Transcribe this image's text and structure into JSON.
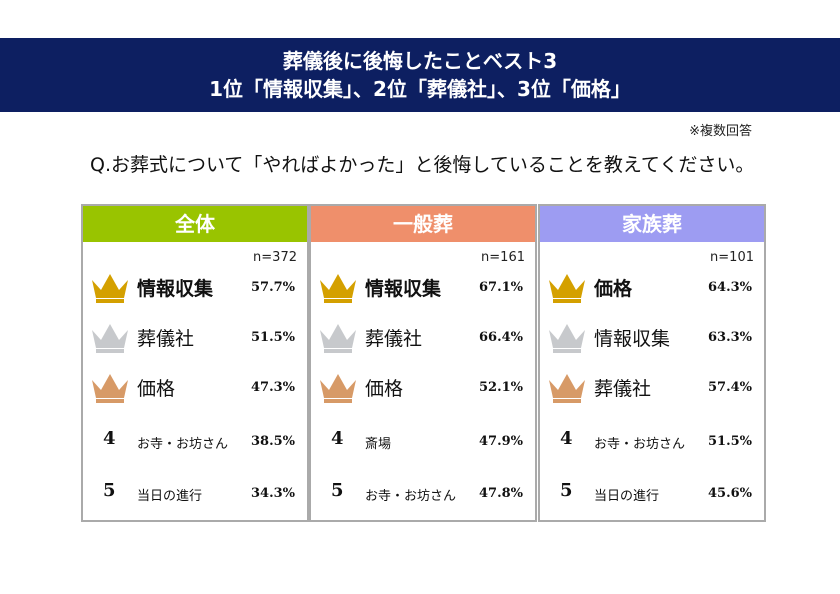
{
  "title": {
    "line1": "葬儀後に後悔したことベスト3",
    "line2": "1位「情報収集」、2位「葬儀社」、3位「価格」"
  },
  "note": "※複数回答",
  "question": "Q.お葬式について「やればよかった」と後悔していることを教えてください。",
  "colors": {
    "banner": "#0d1f61",
    "header_all": "#99c400",
    "header_general": "#ef8f6b",
    "header_family": "#9d9cf2",
    "gold": "#d4a000",
    "silver": "#c7c9cc",
    "bronze": "#d79a67"
  },
  "columns": [
    {
      "header": "全体",
      "n": "n=372",
      "rows": [
        {
          "rank": "1",
          "icon": "gold-crown-icon",
          "label": "情報収集",
          "value": "57.7%"
        },
        {
          "rank": "2",
          "icon": "silver-crown-icon",
          "label": "葬儀社",
          "value": "51.5%"
        },
        {
          "rank": "3",
          "icon": "bronze-crown-icon",
          "label": "価格",
          "value": "47.3%"
        },
        {
          "rank": "4",
          "label": "お寺・お坊さん",
          "value": "38.5%"
        },
        {
          "rank": "5",
          "label": "当日の進行",
          "value": "34.3%"
        }
      ]
    },
    {
      "header": "一般葬",
      "n": "n=161",
      "rows": [
        {
          "rank": "1",
          "icon": "gold-crown-icon",
          "label": "情報収集",
          "value": "67.1%"
        },
        {
          "rank": "2",
          "icon": "silver-crown-icon",
          "label": "葬儀社",
          "value": "66.4%"
        },
        {
          "rank": "3",
          "icon": "bronze-crown-icon",
          "label": "価格",
          "value": "52.1%"
        },
        {
          "rank": "4",
          "label": "斎場",
          "value": "47.9%"
        },
        {
          "rank": "5",
          "label": "お寺・お坊さん",
          "value": "47.8%"
        }
      ]
    },
    {
      "header": "家族葬",
      "n": "n=101",
      "rows": [
        {
          "rank": "1",
          "icon": "gold-crown-icon",
          "label": "価格",
          "value": "64.3%"
        },
        {
          "rank": "2",
          "icon": "silver-crown-icon",
          "label": "情報収集",
          "value": "63.3%"
        },
        {
          "rank": "3",
          "icon": "bronze-crown-icon",
          "label": "葬儀社",
          "value": "57.4%"
        },
        {
          "rank": "4",
          "label": "お寺・お坊さん",
          "value": "51.5%"
        },
        {
          "rank": "5",
          "label": "当日の進行",
          "value": "45.6%"
        }
      ]
    }
  ]
}
